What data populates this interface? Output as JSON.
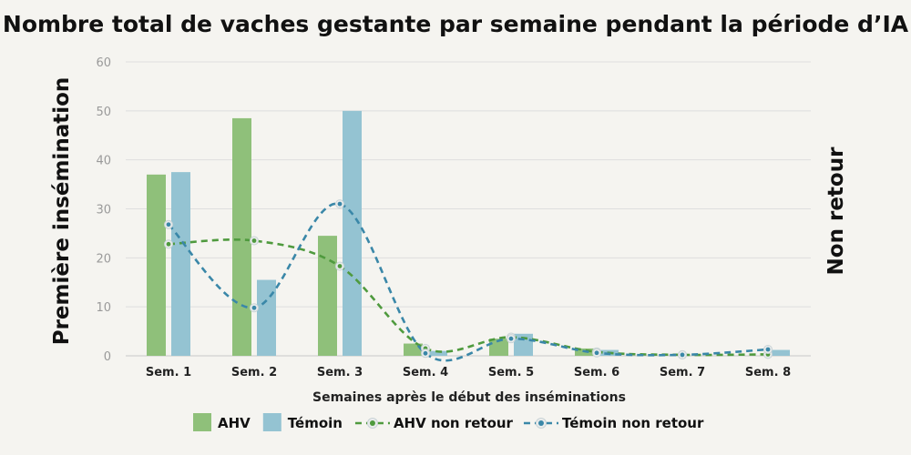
{
  "chart_data": {
    "type": "bar",
    "title": "Nombre total de vaches gestante par semaine pendant la période d’IA",
    "xlabel": "Semaines après le début des inséminations",
    "ylabel": "Première insémination",
    "ylabel_right": "Non retour",
    "categories": [
      "Sem. 1",
      "Sem. 2",
      "Sem. 3",
      "Sem. 4",
      "Sem. 5",
      "Sem. 6",
      "Sem. 7",
      "Sem. 8"
    ],
    "ylim": [
      0,
      60
    ],
    "yticks": [
      0,
      10,
      20,
      30,
      40,
      50,
      60
    ],
    "grid": true,
    "legend_position": "bottom",
    "series": [
      {
        "name": "AHV",
        "kind": "bar",
        "color": "#8fc07a",
        "values": [
          37,
          48.5,
          24.5,
          2.5,
          3.5,
          1.5,
          0,
          0
        ]
      },
      {
        "name": "Témoin",
        "kind": "bar",
        "color": "#94c3d2",
        "values": [
          37.5,
          15.5,
          50,
          1,
          4.5,
          1.2,
          0,
          1.2
        ]
      },
      {
        "name": "AHV non retour",
        "kind": "line",
        "style": "dashed",
        "color": "#4f9a3e",
        "values": [
          22.8,
          23.5,
          18.3,
          1.5,
          3.8,
          0.8,
          0.2,
          0.3
        ]
      },
      {
        "name": "Témoin non retour",
        "kind": "line",
        "style": "dashed",
        "color": "#3a87a8",
        "values": [
          26.8,
          9.8,
          31,
          0.5,
          3.5,
          0.6,
          0.2,
          1.3
        ]
      }
    ]
  }
}
